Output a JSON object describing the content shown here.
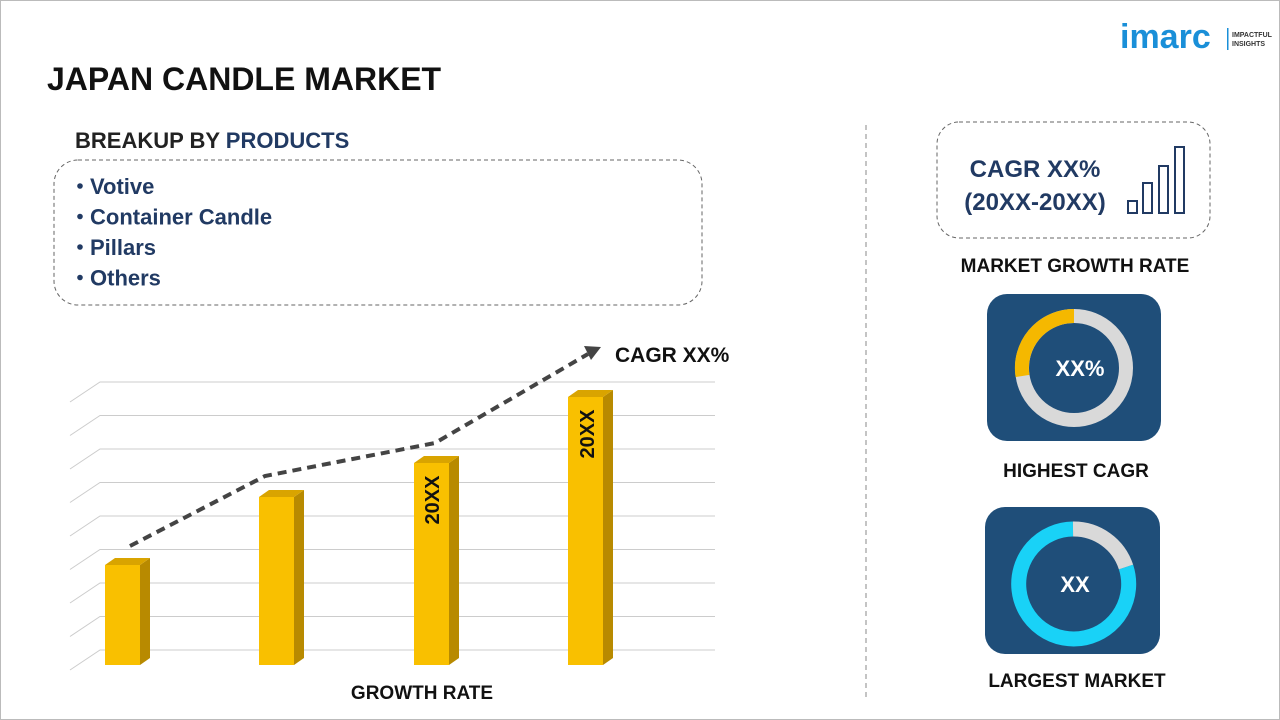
{
  "logo": {
    "name": "imarc",
    "tagline": [
      "IMPACTFUL",
      "INSIGHTS"
    ]
  },
  "header": {
    "title": "JAPAN CANDLE MARKET"
  },
  "breakup": {
    "label": "BREAKUP BY",
    "highlight": "PRODUCTS",
    "items": [
      "Votive",
      "Container Candle",
      "Pillars",
      "Others"
    ]
  },
  "growth_chart": {
    "trend_label": "CAGR XX%",
    "bar_labels": [
      "20XX",
      "20XX"
    ],
    "axis_label": "GROWTH RATE"
  },
  "cards": [
    {
      "text": [
        "CAGR XX%",
        "(20XX-20XX)"
      ],
      "caption": "MARKET GROWTH RATE"
    },
    {
      "text": "XX%",
      "caption": "HIGHEST CAGR"
    },
    {
      "text": "XX",
      "caption": "LARGEST MARKET"
    }
  ]
}
